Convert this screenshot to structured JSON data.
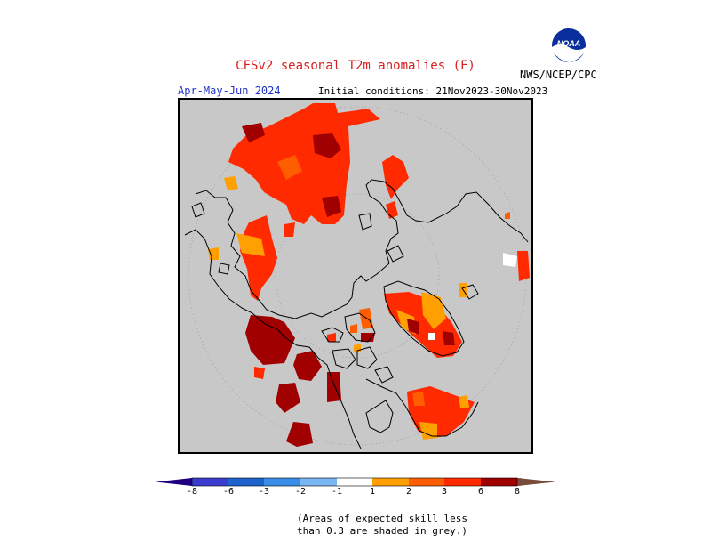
{
  "header": {
    "title": "CFSv2 seasonal T2m anomalies (F)",
    "season": "Apr-May-Jun 2024",
    "initial_conditions": "Initial conditions: 21Nov2023-30Nov2023",
    "agency": "NWS/NCEP/CPC",
    "logo_text": "NOAA"
  },
  "map": {
    "projection": "north-polar-stereographic",
    "background": "#c8c8c8",
    "grey_meaning": "skill below 0.3"
  },
  "colorbar": {
    "labels": [
      "-8",
      "-6",
      "-3",
      "-2",
      "-1",
      "1",
      "2",
      "3",
      "6",
      "8"
    ],
    "colors": {
      "lt_m8": "#200080",
      "m8_m6": "#3b3bd0",
      "m6_m3": "#1f63cf",
      "m3_m2": "#3b8ee8",
      "m2_m1": "#7ab6f2",
      "m1_1": "#ffffff",
      "1_2": "#ffa000",
      "2_3": "#ff5e00",
      "3_6": "#ff2a00",
      "6_8": "#a00000",
      "gt_8": "#c8a08c",
      "gt_8_arrow": "#7a4a3a"
    }
  },
  "footnote": {
    "line1": "(Areas of expected skill less",
    "line2": "than 0.3 are shaded in grey.)"
  }
}
